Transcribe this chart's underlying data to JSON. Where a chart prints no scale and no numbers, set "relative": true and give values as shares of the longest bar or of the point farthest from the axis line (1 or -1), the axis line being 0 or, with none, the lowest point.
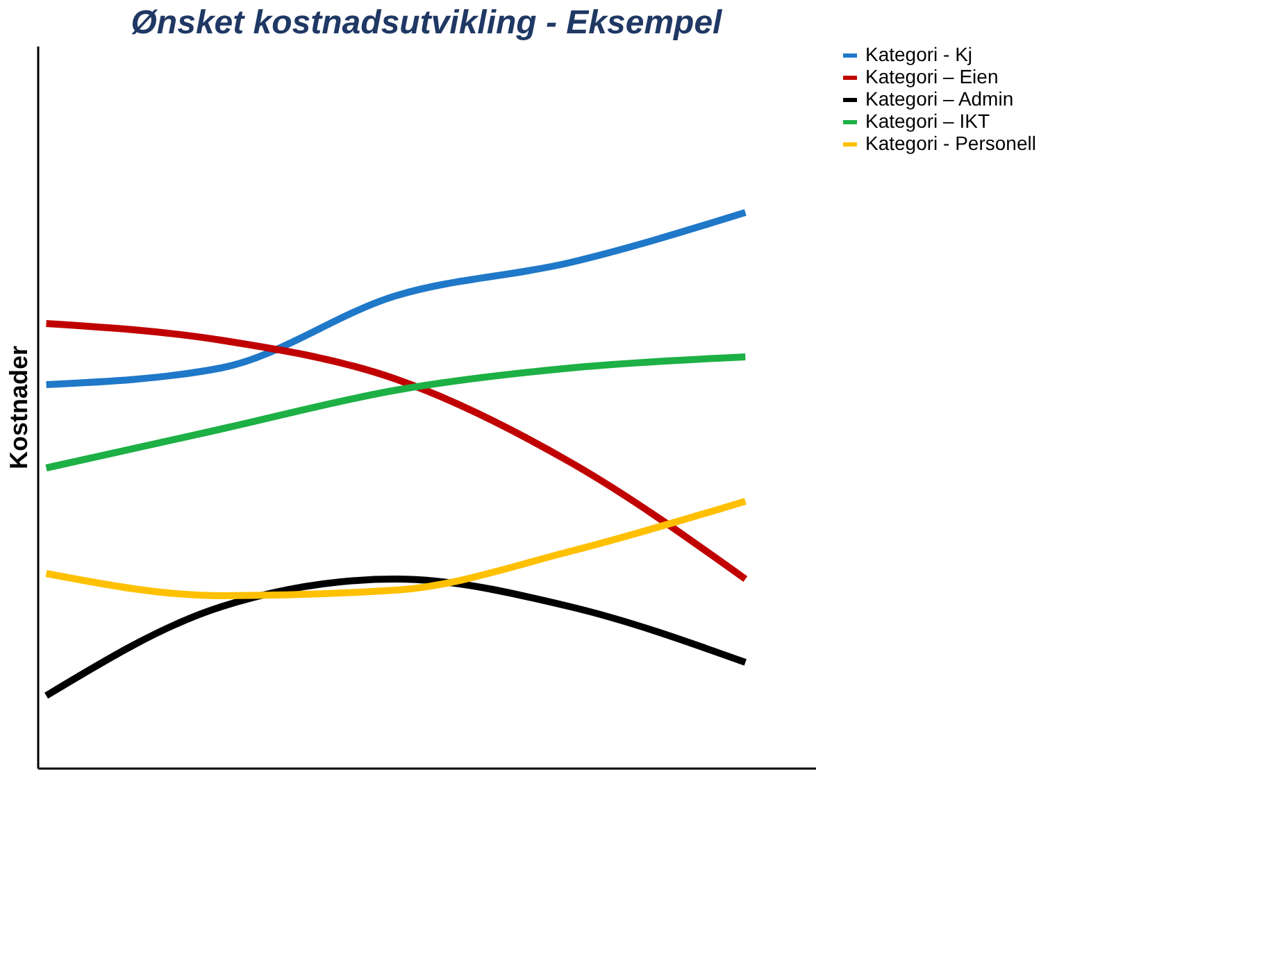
{
  "chart_data": {
    "type": "line",
    "title": "Ønsket kostnadsutvikling - Eksempel",
    "ylabel": "Kostnader",
    "relative": true,
    "categories": [
      null,
      null,
      null,
      null,
      null
    ],
    "series": [
      {
        "name": "Kategori - Kj",
        "color": "#1f78c8",
        "values": [
          0.69,
          0.72,
          0.85,
          0.91,
          1.0
        ]
      },
      {
        "name": "Kategori – Eien",
        "color": "#c00000",
        "values": [
          0.8,
          0.77,
          0.7,
          0.55,
          0.34
        ]
      },
      {
        "name": "Kategori – Admin",
        "color": "#000000",
        "values": [
          0.13,
          0.29,
          0.34,
          0.29,
          0.19
        ]
      },
      {
        "name": "Kategori – IKT",
        "color": "#1db045",
        "values": [
          0.54,
          0.61,
          0.68,
          0.72,
          0.74
        ]
      },
      {
        "name": "Kategori - Personell",
        "color": "#ffc000",
        "values": [
          0.35,
          0.31,
          0.32,
          0.39,
          0.48
        ]
      }
    ],
    "legend": "right",
    "grid": false,
    "marker": "none",
    "line_style": "solid"
  }
}
